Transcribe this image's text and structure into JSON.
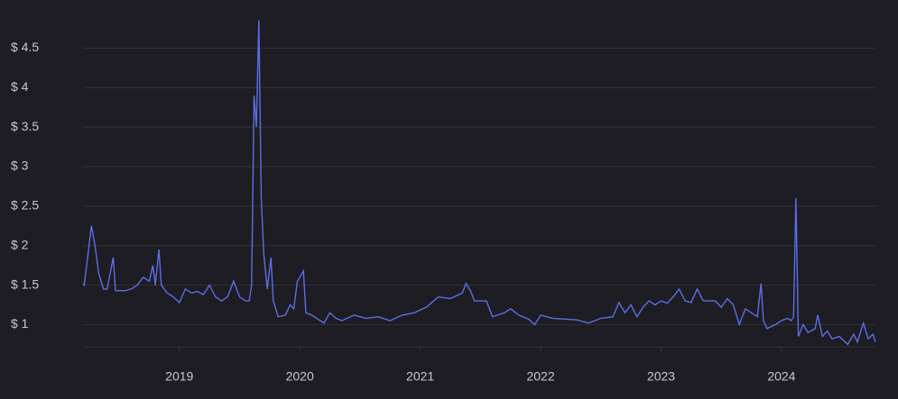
{
  "chart_data": {
    "type": "line",
    "x": [
      2018.2,
      2018.21,
      2018.25,
      2018.27,
      2018.3,
      2018.33,
      2018.37,
      2018.4,
      2018.45,
      2018.47,
      2018.55,
      2018.6,
      2018.65,
      2018.7,
      2018.75,
      2018.78,
      2018.8,
      2018.83,
      2018.85,
      2018.9,
      2018.95,
      2019.0,
      2019.05,
      2019.1,
      2019.15,
      2019.2,
      2019.25,
      2019.3,
      2019.35,
      2019.4,
      2019.45,
      2019.5,
      2019.55,
      2019.58,
      2019.6,
      2019.62,
      2019.64,
      2019.66,
      2019.68,
      2019.7,
      2019.73,
      2019.76,
      2019.78,
      2019.82,
      2019.88,
      2019.92,
      2019.95,
      2019.98,
      2020.0,
      2020.03,
      2020.05,
      2020.1,
      2020.15,
      2020.2,
      2020.25,
      2020.3,
      2020.35,
      2020.45,
      2020.55,
      2020.65,
      2020.75,
      2020.85,
      2020.95,
      2021.05,
      2021.15,
      2021.25,
      2021.35,
      2021.38,
      2021.42,
      2021.45,
      2021.55,
      2021.6,
      2021.7,
      2021.75,
      2021.82,
      2021.9,
      2021.95,
      2022.0,
      2022.1,
      2022.2,
      2022.3,
      2022.4,
      2022.5,
      2022.6,
      2022.65,
      2022.7,
      2022.75,
      2022.8,
      2022.85,
      2022.9,
      2022.95,
      2023.0,
      2023.05,
      2023.1,
      2023.15,
      2023.2,
      2023.25,
      2023.3,
      2023.35,
      2023.45,
      2023.5,
      2023.55,
      2023.6,
      2023.65,
      2023.7,
      2023.75,
      2023.8,
      2023.83,
      2023.85,
      2023.88,
      2023.95,
      2024.0,
      2024.05,
      2024.08,
      2024.1,
      2024.12,
      2024.14,
      2024.18,
      2024.22,
      2024.28,
      2024.3,
      2024.34,
      2024.38,
      2024.42,
      2024.48,
      2024.55,
      2024.6,
      2024.63,
      2024.68,
      2024.72,
      2024.76,
      2024.78
    ],
    "series": [
      {
        "color": "#5a6fe3",
        "values": [
          1.52,
          1.5,
          2.0,
          2.25,
          2.0,
          1.65,
          1.45,
          1.45,
          1.85,
          1.43,
          1.43,
          1.45,
          1.5,
          1.6,
          1.55,
          1.75,
          1.5,
          1.95,
          1.5,
          1.4,
          1.35,
          1.28,
          1.45,
          1.4,
          1.42,
          1.38,
          1.5,
          1.35,
          1.3,
          1.35,
          1.55,
          1.35,
          1.3,
          1.3,
          1.5,
          3.9,
          3.5,
          4.85,
          2.6,
          1.9,
          1.45,
          1.85,
          1.3,
          1.1,
          1.12,
          1.25,
          1.2,
          1.55,
          1.6,
          1.68,
          1.15,
          1.12,
          1.07,
          1.02,
          1.15,
          1.08,
          1.05,
          1.12,
          1.08,
          1.1,
          1.05,
          1.12,
          1.15,
          1.22,
          1.35,
          1.33,
          1.4,
          1.52,
          1.42,
          1.3,
          1.3,
          1.1,
          1.15,
          1.2,
          1.12,
          1.07,
          1.0,
          1.12,
          1.08,
          1.07,
          1.06,
          1.02,
          1.08,
          1.1,
          1.28,
          1.15,
          1.25,
          1.1,
          1.22,
          1.3,
          1.25,
          1.3,
          1.27,
          1.35,
          1.45,
          1.3,
          1.28,
          1.45,
          1.3,
          1.3,
          1.22,
          1.33,
          1.25,
          1.0,
          1.2,
          1.15,
          1.1,
          1.52,
          1.05,
          0.95,
          1.0,
          1.05,
          1.08,
          1.05,
          1.1,
          2.6,
          0.85,
          1.0,
          0.9,
          0.95,
          1.12,
          0.85,
          0.92,
          0.82,
          0.85,
          0.75,
          0.88,
          0.78,
          1.02,
          0.82,
          0.88,
          0.78
        ]
      }
    ],
    "xlim": [
      2018.2,
      2024.78
    ],
    "xticks": [
      2019,
      2020,
      2021,
      2022,
      2023,
      2024
    ],
    "ylim": [
      0.72,
      4.88
    ],
    "yticks": [
      {
        "value": 1,
        "label": "$ 1"
      },
      {
        "value": 1.5,
        "label": "$ 1.5"
      },
      {
        "value": 2,
        "label": "$ 2"
      },
      {
        "value": 2.5,
        "label": "$ 2.5"
      },
      {
        "value": 3,
        "label": "$ 3"
      },
      {
        "value": 3.5,
        "label": "$ 3.5"
      },
      {
        "value": 4,
        "label": "$ 4"
      },
      {
        "value": 4.5,
        "label": "$ 4.5"
      }
    ],
    "grid": true
  }
}
